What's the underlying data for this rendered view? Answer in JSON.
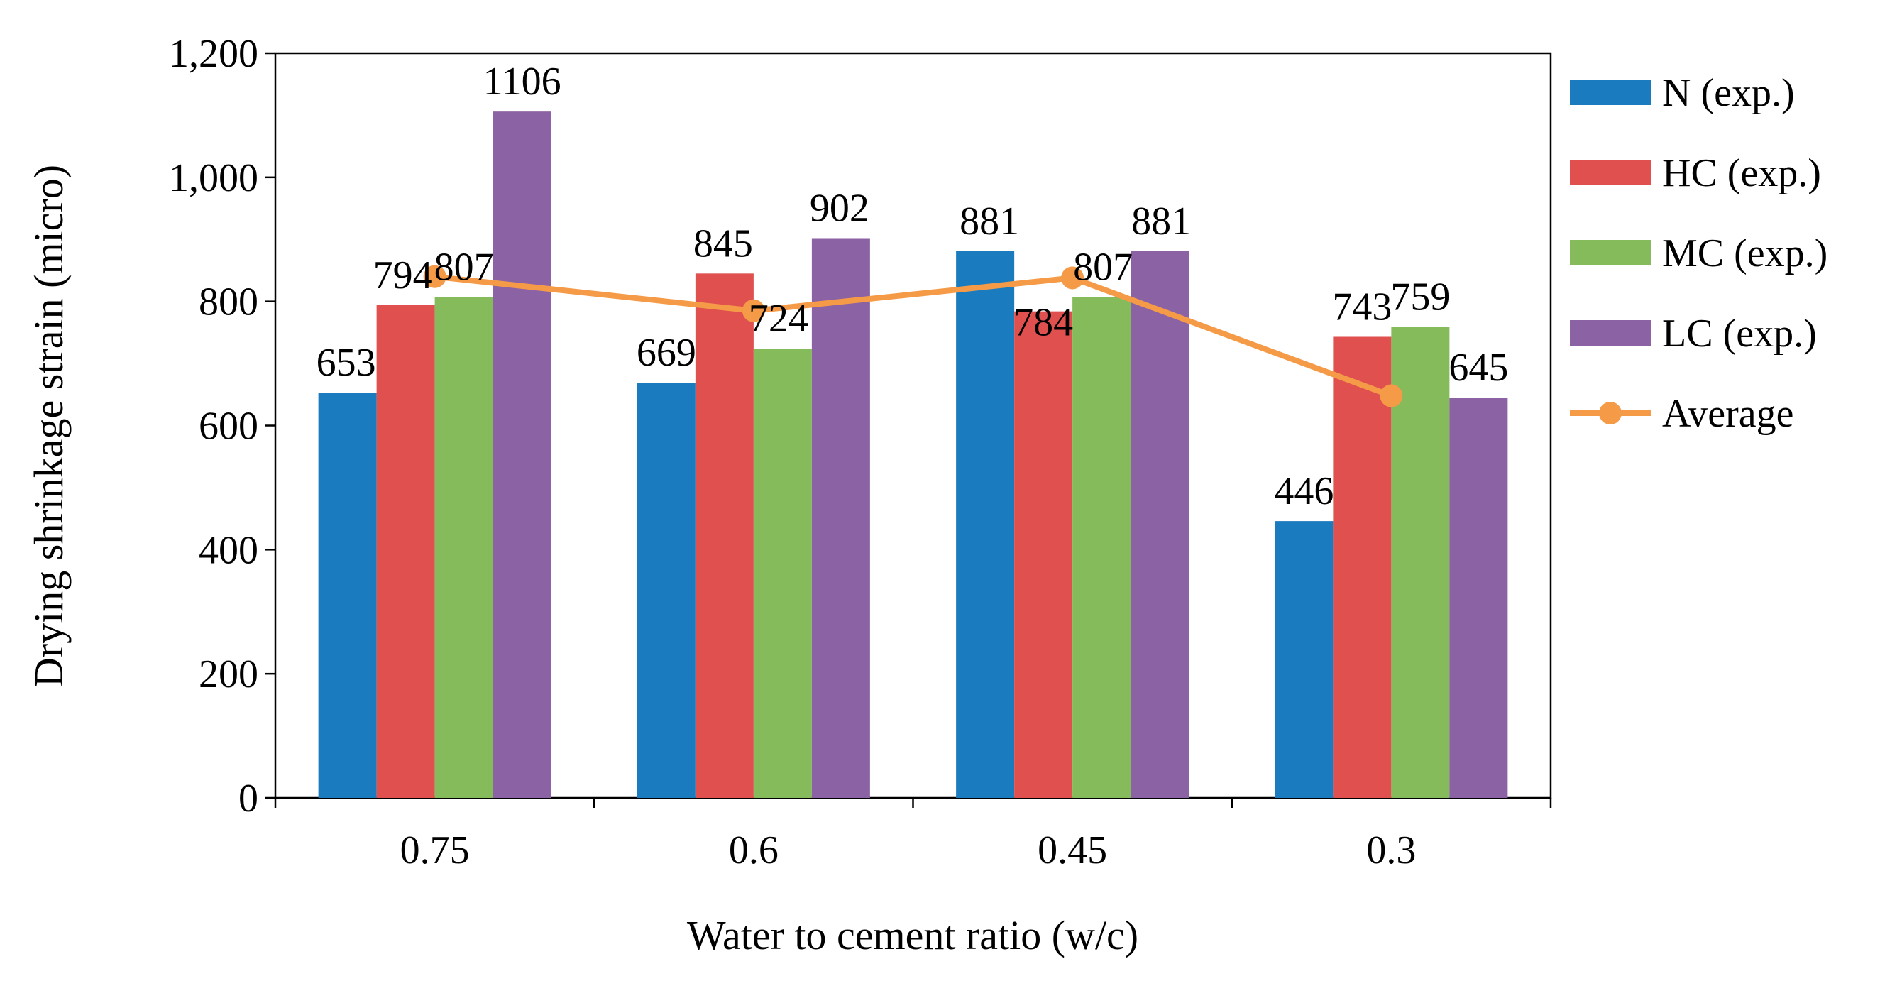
{
  "chart_data": {
    "type": "bar",
    "title": "",
    "xlabel": "Water to cement ratio (w/c)",
    "ylabel": "Drying shrinkage strain (micro)",
    "categories": [
      "0.75",
      "0.6",
      "0.45",
      "0.3"
    ],
    "ylim": [
      0,
      1200
    ],
    "yticks": [
      0,
      200,
      400,
      600,
      800,
      1000,
      1200
    ],
    "ytick_labels": [
      "0",
      "200",
      "400",
      "600",
      "800",
      "1,000",
      "1,200"
    ],
    "grid": false,
    "legend_position": "right",
    "series": [
      {
        "name": "N (exp.)",
        "type": "bar",
        "color": "#1a7bbf",
        "values": [
          653,
          669,
          881,
          446
        ]
      },
      {
        "name": "HC (exp.)",
        "type": "bar",
        "color": "#e0504e",
        "values": [
          794,
          845,
          784,
          743
        ]
      },
      {
        "name": "MC (exp.)",
        "type": "bar",
        "color": "#85bb5a",
        "values": [
          807,
          724,
          807,
          759
        ]
      },
      {
        "name": "LC (exp.)",
        "type": "bar",
        "color": "#8b62a3",
        "values": [
          1106,
          902,
          881,
          645
        ]
      },
      {
        "name": "Average",
        "type": "line",
        "color": "#f59b48",
        "values": [
          840,
          785,
          838,
          648
        ]
      }
    ]
  }
}
